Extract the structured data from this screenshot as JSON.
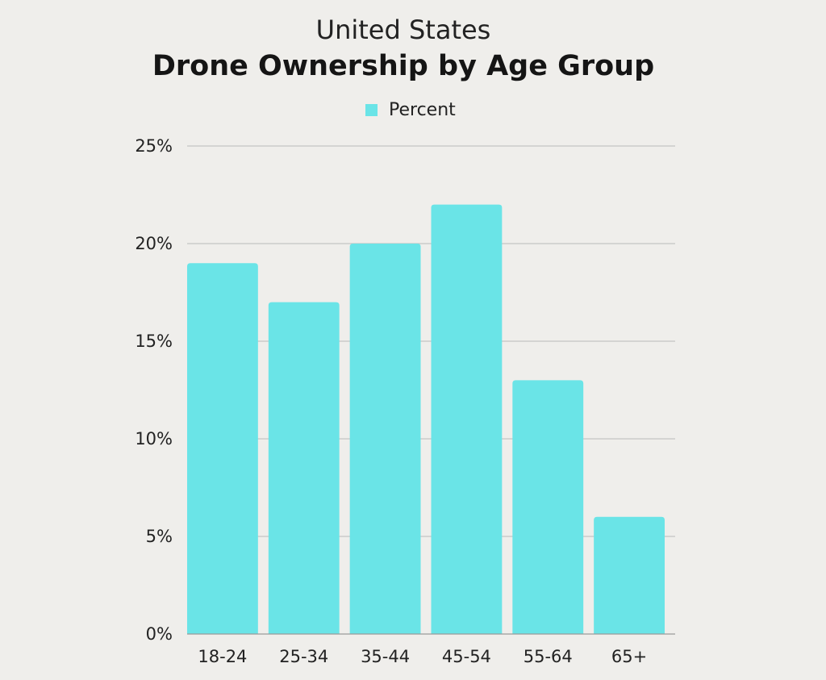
{
  "chart_data": {
    "type": "bar",
    "subtitle": "United States",
    "title": "Drone Ownership by Age Group",
    "legend": [
      "Percent"
    ],
    "legend_position": "top-center",
    "categories": [
      "18-24",
      "25-34",
      "35-44",
      "45-54",
      "55-64",
      "65+"
    ],
    "series": [
      {
        "name": "Percent",
        "values": [
          19,
          17,
          20,
          22,
          13,
          6
        ]
      }
    ],
    "ylim": [
      0,
      25
    ],
    "yticks": [
      0,
      5,
      10,
      15,
      20,
      25
    ],
    "ytick_labels": [
      "0%",
      "5%",
      "10%",
      "15%",
      "20%",
      "25%"
    ],
    "grid": true,
    "xlabel": "",
    "ylabel": ""
  },
  "colors": {
    "bar": "#6ae4e7",
    "grid": "#c4c4c4",
    "background": "#efeeeb"
  }
}
